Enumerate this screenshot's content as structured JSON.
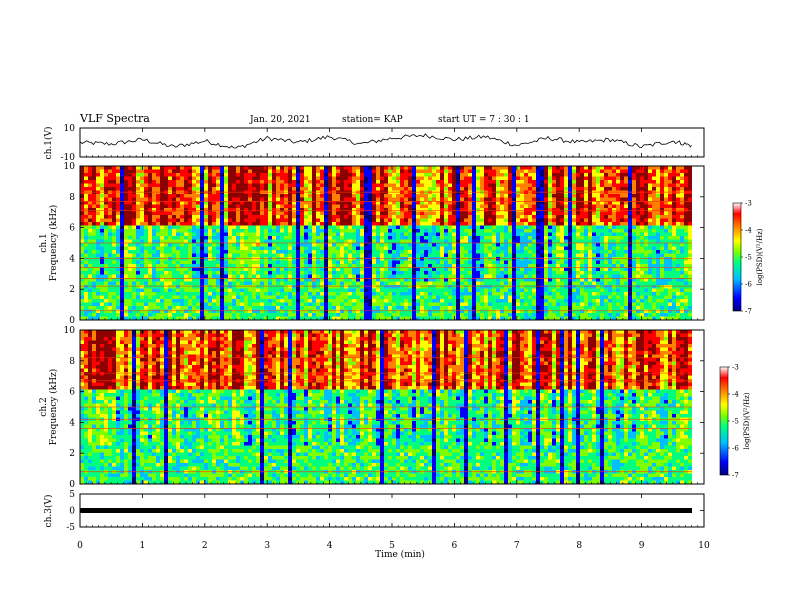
{
  "header": {
    "title": "VLF Spectra",
    "date": "Jan. 20, 2021",
    "station": "station= KAP",
    "start": "start  UT =   7 : 30 : 1"
  },
  "colors": {
    "colormap": [
      "#00007f",
      "#0000ff",
      "#00bfff",
      "#00ff7f",
      "#7fff00",
      "#ffff00",
      "#ff7f00",
      "#ff0000",
      "#8b0000",
      "#ffffff"
    ],
    "trace": "#000000"
  },
  "chart_data": [
    {
      "type": "line",
      "ylabel": "ch.1(V)",
      "xlim": [
        0,
        10
      ],
      "ylim": [
        -10,
        10
      ],
      "yticks": [
        "10",
        "-10"
      ],
      "x": [
        0,
        0.5,
        1,
        1.5,
        2,
        2.5,
        3,
        3.5,
        4,
        4.5,
        5,
        5.5,
        6,
        6.5,
        7,
        7.5,
        8,
        8.5,
        9,
        9.5,
        9.8
      ],
      "y": [
        0,
        -1,
        2,
        -3,
        1,
        -4,
        3,
        0,
        4,
        -1,
        3,
        5,
        2,
        4,
        -2,
        3,
        0,
        2,
        -3,
        1,
        -2
      ]
    },
    {
      "type": "heatmap",
      "ylabel": "ch.1\nFrequency (kHz)",
      "xlim": [
        0,
        10
      ],
      "ylim": [
        0,
        10
      ],
      "yticks": [
        "0",
        "2",
        "4",
        "6",
        "8",
        "10"
      ],
      "colorbar": {
        "label": "log(PSD)(V²/Hz)",
        "range": [
          -7,
          -3
        ],
        "ticks": [
          "-3",
          "-4",
          "-5",
          "-6",
          "-7"
        ]
      }
    },
    {
      "type": "heatmap",
      "ylabel": "ch.2\nFrequency (kHz)",
      "xlim": [
        0,
        10
      ],
      "ylim": [
        0,
        10
      ],
      "yticks": [
        "0",
        "2",
        "4",
        "6",
        "8",
        "10"
      ],
      "colorbar": {
        "label": "log(PSD)(V²/Hz)",
        "range": [
          -7,
          -3
        ],
        "ticks": [
          "-3",
          "-4",
          "-5",
          "-6",
          "-7"
        ]
      }
    },
    {
      "type": "line",
      "ylabel": "ch.3(V)",
      "xlim": [
        0,
        10
      ],
      "ylim": [
        -5,
        5
      ],
      "yticks": [
        "5",
        "0",
        "-5"
      ],
      "x": [
        0,
        9.8
      ],
      "y": [
        0,
        0
      ]
    }
  ],
  "xaxis": {
    "label": "Time (min)",
    "ticks": [
      "0",
      "1",
      "2",
      "3",
      "4",
      "5",
      "6",
      "7",
      "8",
      "9",
      "10"
    ]
  }
}
